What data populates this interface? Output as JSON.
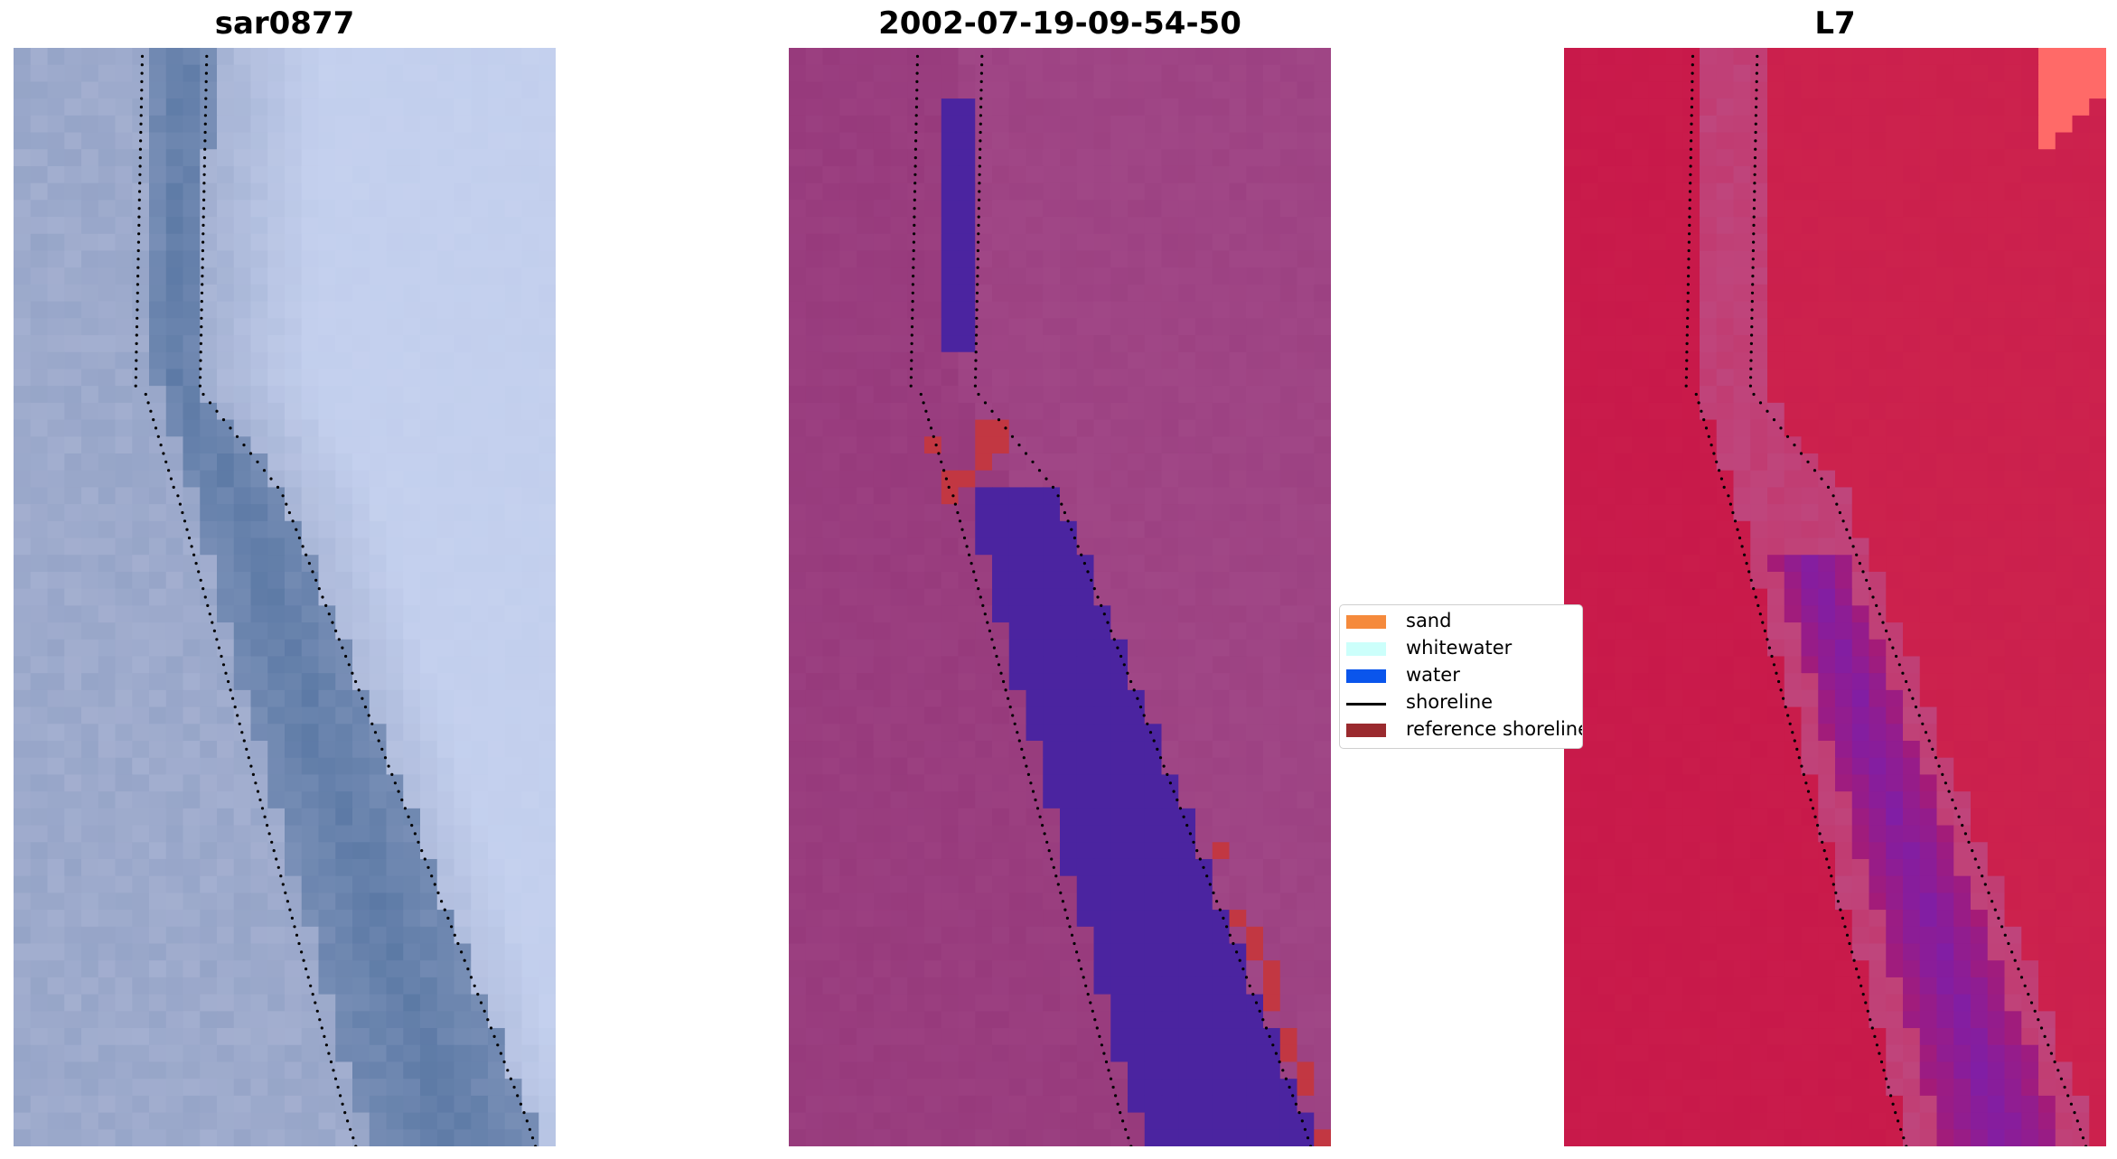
{
  "panels": [
    {
      "title": "sar0877",
      "palette": "rgb"
    },
    {
      "title": "2002-07-19-09-54-50",
      "palette": "classified"
    },
    {
      "title": "L7",
      "palette": "index"
    }
  ],
  "legend": {
    "items": [
      {
        "label": "sand",
        "color": "#f58a3c",
        "kind": "patch"
      },
      {
        "label": "whitewater",
        "color": "#ccfffb",
        "kind": "patch"
      },
      {
        "label": "water",
        "color": "#0a55ec",
        "kind": "patch"
      },
      {
        "label": "shoreline",
        "color": "#000000",
        "kind": "line"
      },
      {
        "label": "reference shoreline",
        "color": "#9a2a2e",
        "kind": "patch"
      }
    ]
  },
  "colors": {
    "rgb_land": "#a9b3d3",
    "rgb_bright": "#cdd9f6",
    "rgb_water": "#5a78a4",
    "class_land": "#973a7c",
    "class_water": "#4b24a0",
    "class_ref": "#c23742",
    "index_land": "#c8194a",
    "index_water": "#7e1ea8",
    "index_sand": "#ff6a68"
  }
}
